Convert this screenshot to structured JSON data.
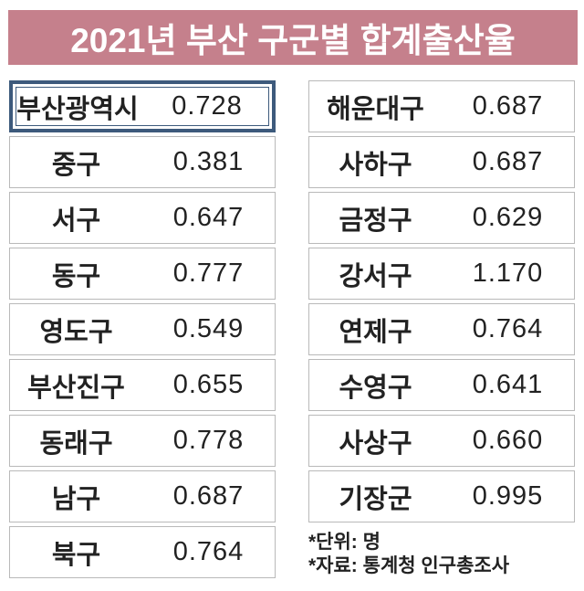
{
  "title": "2021년 부산 구군별 합계출산율",
  "colors": {
    "title_bg": "#c5808c",
    "title_text": "#ffffff",
    "highlight_border": "#3d5a7c",
    "row_border": "#b9b9b9",
    "text": "#222222"
  },
  "table": {
    "left_rows": [
      {
        "name": "부산광역시",
        "value": "0.728",
        "highlight": true
      },
      {
        "name": "중구",
        "value": "0.381"
      },
      {
        "name": "서구",
        "value": "0.647"
      },
      {
        "name": "동구",
        "value": "0.777"
      },
      {
        "name": "영도구",
        "value": "0.549"
      },
      {
        "name": "부산진구",
        "value": "0.655"
      },
      {
        "name": "동래구",
        "value": "0.778"
      },
      {
        "name": "남구",
        "value": "0.687"
      },
      {
        "name": "북구",
        "value": "0.764"
      }
    ],
    "right_rows": [
      {
        "name": "해운대구",
        "value": "0.687"
      },
      {
        "name": "사하구",
        "value": "0.687"
      },
      {
        "name": "금정구",
        "value": "0.629"
      },
      {
        "name": "강서구",
        "value": "1.170"
      },
      {
        "name": "연제구",
        "value": "0.764"
      },
      {
        "name": "수영구",
        "value": "0.641"
      },
      {
        "name": "사상구",
        "value": "0.660"
      },
      {
        "name": "기장군",
        "value": "0.995"
      }
    ]
  },
  "footnotes": {
    "unit": "*단위: 명",
    "source": "*자료: 통계청 인구총조사"
  },
  "chart_data": {
    "type": "table",
    "title": "2021년 부산 구군별 합계출산율",
    "unit": "명",
    "source": "통계청 인구총조사",
    "highlighted_category": "부산광역시",
    "categories": [
      "부산광역시",
      "중구",
      "서구",
      "동구",
      "영도구",
      "부산진구",
      "동래구",
      "남구",
      "북구",
      "해운대구",
      "사하구",
      "금정구",
      "강서구",
      "연제구",
      "수영구",
      "사상구",
      "기장군"
    ],
    "values": [
      0.728,
      0.381,
      0.647,
      0.777,
      0.549,
      0.655,
      0.778,
      0.687,
      0.764,
      0.687,
      0.687,
      0.629,
      1.17,
      0.764,
      0.641,
      0.66,
      0.995
    ]
  }
}
